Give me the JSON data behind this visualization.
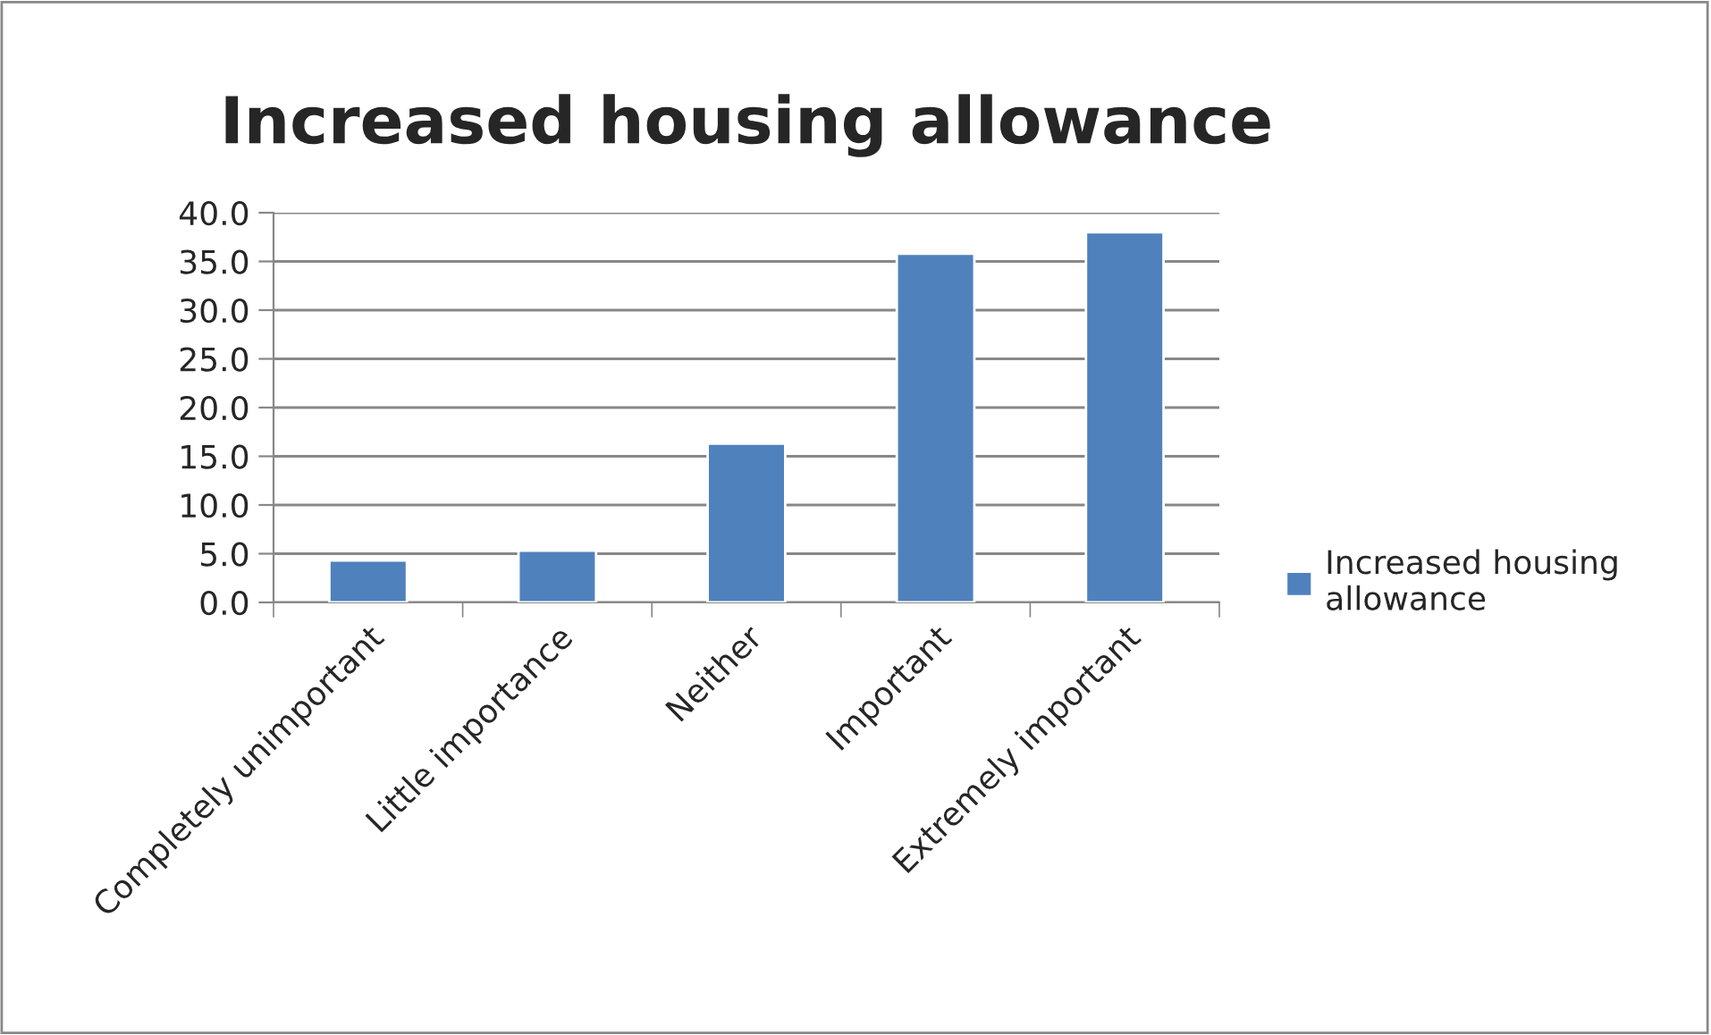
{
  "chart_data": {
    "type": "bar",
    "title": "Increased housing allowance",
    "categories": [
      "Completely unimportant",
      "Little importance",
      "Neither",
      "Important",
      "Extremely important"
    ],
    "series": [
      {
        "name": "Increased housing allowance",
        "color": "#4f81bd",
        "values": [
          4.3,
          5.3,
          16.3,
          35.8,
          38.0
        ]
      }
    ],
    "ylim": [
      0,
      40
    ],
    "yticks": [
      {
        "value": 0,
        "label": "0.0"
      },
      {
        "value": 5,
        "label": "5.0"
      },
      {
        "value": 10,
        "label": "10.0"
      },
      {
        "value": 15,
        "label": "15.0"
      },
      {
        "value": 20,
        "label": "20.0"
      },
      {
        "value": 25,
        "label": "25.0"
      },
      {
        "value": 30,
        "label": "30.0"
      },
      {
        "value": 35,
        "label": "35.0"
      },
      {
        "value": 40,
        "label": "40.0"
      }
    ],
    "grid": "y",
    "legend": "right"
  }
}
